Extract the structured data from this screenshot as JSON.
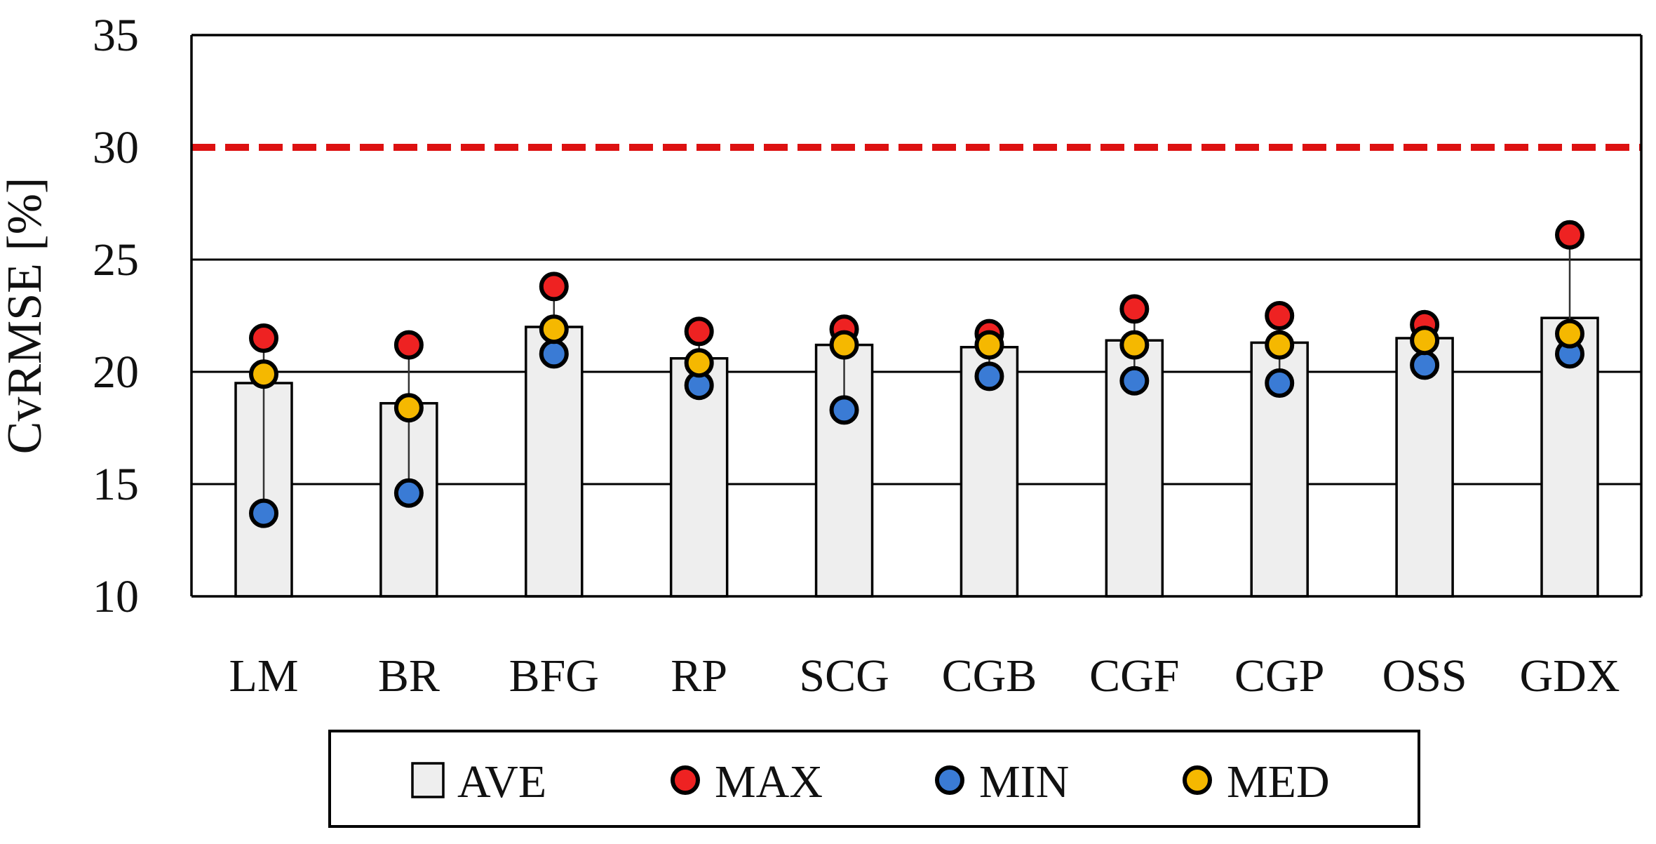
{
  "chart_data": {
    "type": "bar",
    "ylabel": "CvRMSE [%]",
    "ylim": [
      10,
      35
    ],
    "yticks": [
      10,
      15,
      20,
      25,
      30,
      35
    ],
    "grid": true,
    "threshold": 30,
    "legend_position": "bottom",
    "categories": [
      "LM",
      "BR",
      "BFG",
      "RP",
      "SCG",
      "CGB",
      "CGF",
      "CGP",
      "OSS",
      "GDX"
    ],
    "series": [
      {
        "name": "AVE",
        "marker": "bar",
        "color": "#eeeeee",
        "values": [
          19.5,
          18.6,
          22.0,
          20.6,
          21.2,
          21.1,
          21.4,
          21.3,
          21.5,
          22.4
        ]
      },
      {
        "name": "MAX",
        "marker": "circle",
        "color": "#ee2222",
        "values": [
          21.5,
          21.2,
          23.8,
          21.8,
          21.9,
          21.7,
          22.8,
          22.5,
          22.1,
          26.1
        ]
      },
      {
        "name": "MIN",
        "marker": "circle",
        "color": "#3a7bd5",
        "values": [
          13.7,
          14.6,
          20.8,
          19.4,
          18.3,
          19.8,
          19.6,
          19.5,
          20.3,
          20.8
        ]
      },
      {
        "name": "MED",
        "marker": "circle",
        "color": "#f5b800",
        "values": [
          19.9,
          18.4,
          21.9,
          20.4,
          21.2,
          21.2,
          21.2,
          21.2,
          21.4,
          21.7
        ]
      }
    ],
    "colors": {
      "threshold_line": "#dd1111",
      "axis": "#000000",
      "grid": "#000000"
    }
  }
}
